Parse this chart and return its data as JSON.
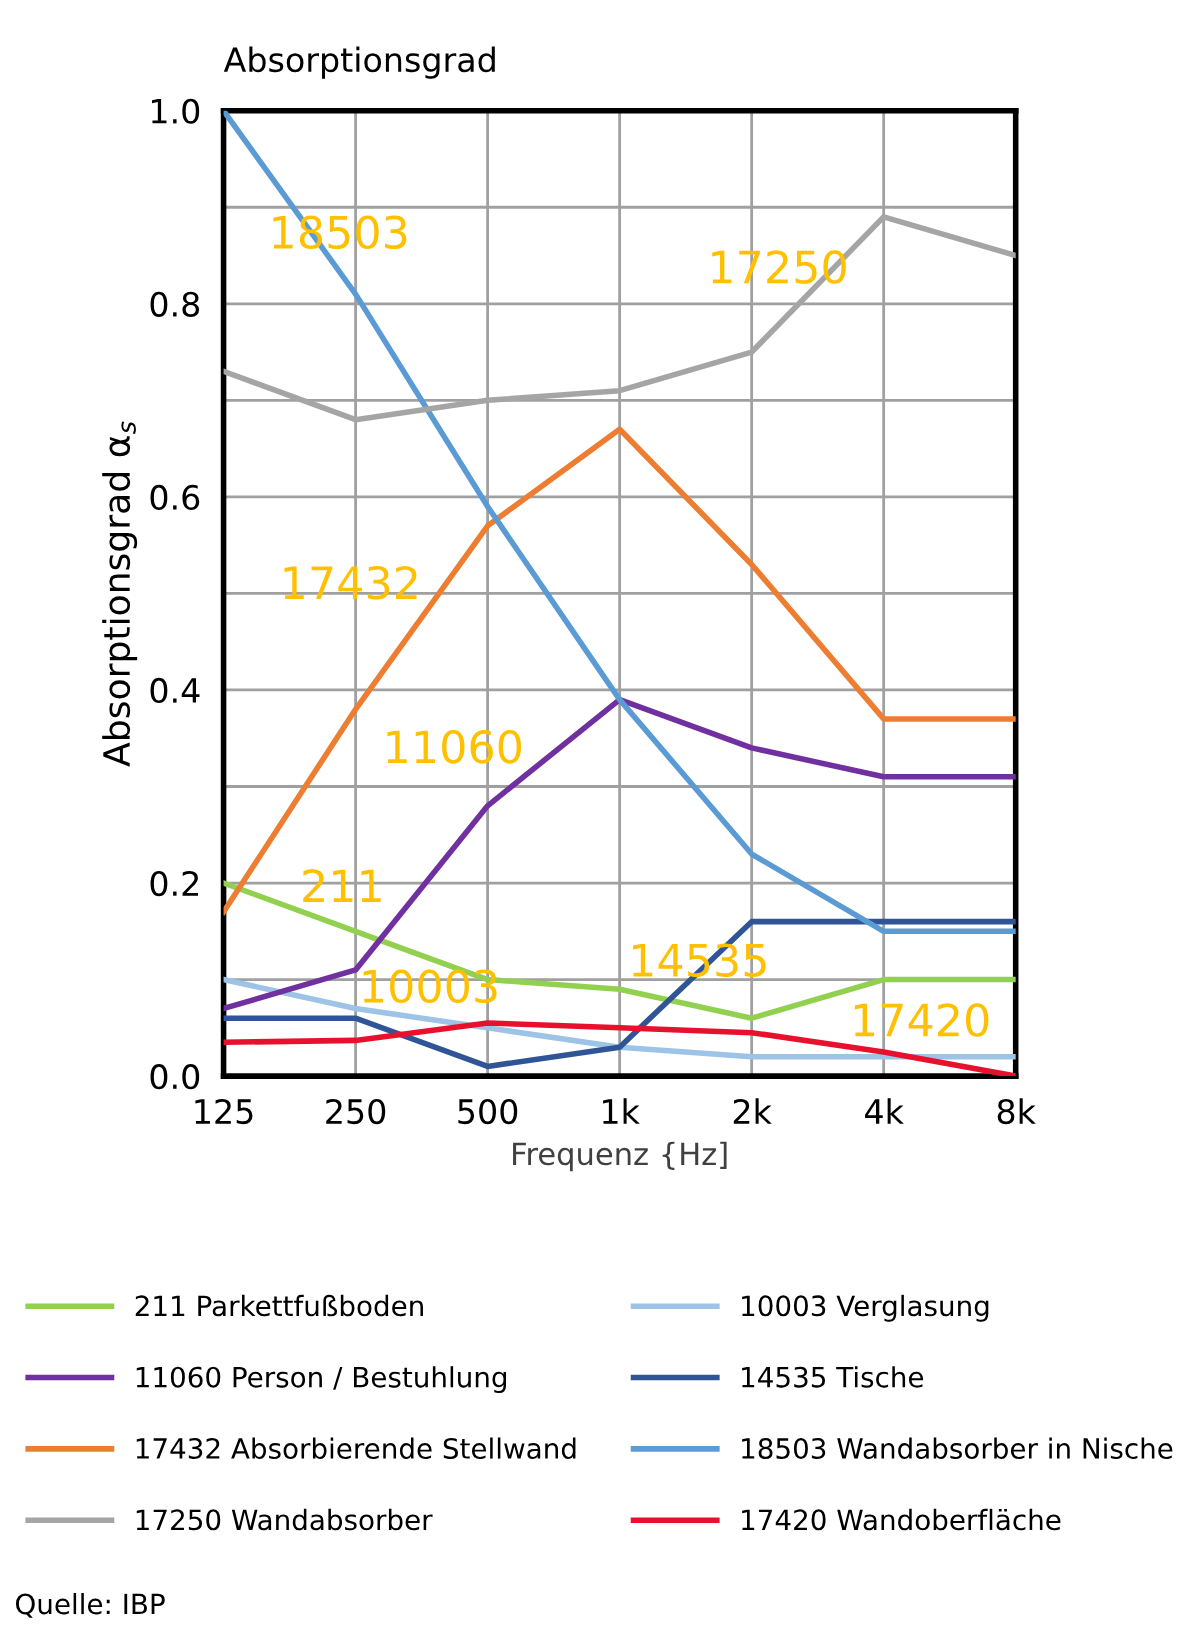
{
  "chart_data": {
    "type": "line",
    "title": "Absorptionsgrad",
    "xlabel": "Frequenz {Hz]",
    "ylabel": "Absorptionsgrad α$_{s}$",
    "categories": [
      "125",
      "250",
      "500",
      "1k",
      "2k",
      "4k",
      "8k"
    ],
    "ylim": [
      0,
      1.0
    ],
    "yticks": [
      {
        "value": 0,
        "label": "0.0"
      },
      {
        "value": 0.1,
        "label": null
      },
      {
        "value": 0.2,
        "label": "0.2"
      },
      {
        "value": 0.3,
        "label": null
      },
      {
        "value": 0.4,
        "label": "0.4"
      },
      {
        "value": 0.5,
        "label": null
      },
      {
        "value": 0.6,
        "label": "0.6"
      },
      {
        "value": 0.7,
        "label": null
      },
      {
        "value": 0.8,
        "label": "0.8"
      },
      {
        "value": 0.9,
        "label": null
      },
      {
        "value": 1.0,
        "label": "1.0"
      }
    ],
    "grid": true,
    "legend": "bottom",
    "marker": "none",
    "line_style": "solid",
    "series": [
      {
        "name": "211 Parkettfußboden",
        "color": "#92d050",
        "values": [
          0.2,
          0.15,
          0.1,
          0.09,
          0.06,
          0.1,
          0.1
        ]
      },
      {
        "name": "10003 Verglasung",
        "color": "#9dc3e6",
        "values": [
          0.1,
          0.07,
          0.05,
          0.03,
          0.02,
          0.02,
          0.02
        ]
      },
      {
        "name": "11060 Person / Bestuhlung",
        "color": "#7030a0",
        "values": [
          0.07,
          0.11,
          0.28,
          0.39,
          0.34,
          0.31,
          0.31
        ]
      },
      {
        "name": "14535 Tische",
        "color": "#2f5597",
        "values": [
          0.06,
          0.06,
          0.01,
          0.03,
          0.16,
          0.16,
          0.16
        ]
      },
      {
        "name": "17432 Absorbierende Stellwand",
        "color": "#ed7d31",
        "values": [
          0.17,
          0.38,
          0.57,
          0.67,
          0.53,
          0.37,
          0.37
        ]
      },
      {
        "name": "18503 Wandabsorber in Nische",
        "color": "#5b9bd5",
        "values": [
          1.0,
          0.81,
          0.59,
          0.39,
          0.23,
          0.15,
          0.15
        ]
      },
      {
        "name": "17250 Wandabsorber",
        "color": "#a5a5a5",
        "values": [
          0.73,
          0.68,
          0.7,
          0.71,
          0.75,
          0.89,
          0.85
        ]
      },
      {
        "name": "17420 Wandoberfläche",
        "color": "#e8112d",
        "values": [
          0.035,
          0.037,
          0.055,
          0.05,
          0.045,
          0.025,
          0.0
        ]
      }
    ],
    "annotations": [
      "18503",
      "17250",
      "17432",
      "11060",
      "211",
      "10003",
      "14535",
      "17420",
      "Quelle: IBP"
    ]
  }
}
